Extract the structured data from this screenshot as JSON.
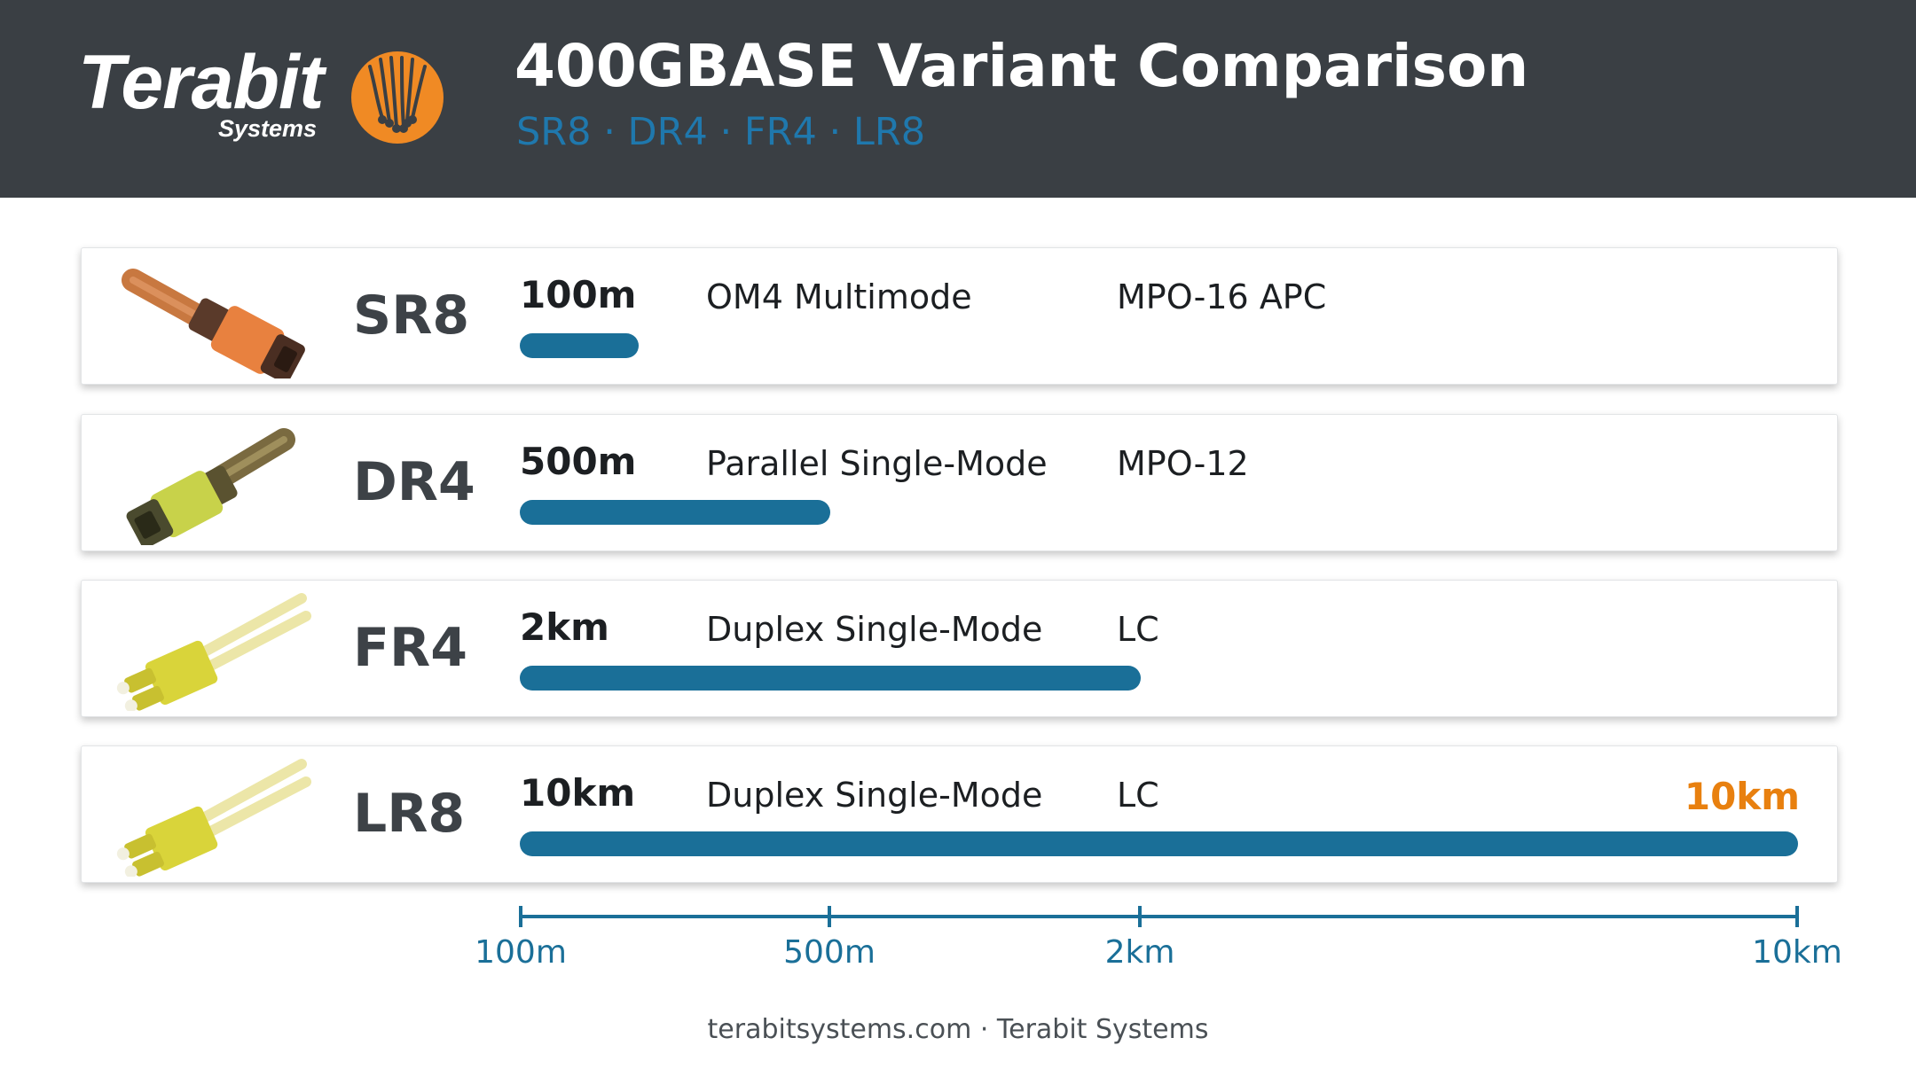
{
  "header": {
    "logo_word": "Terabit",
    "logo_sub": "Systems",
    "title": "400GBASE Variant Comparison",
    "subtitle": "SR8 · DR4 · FR4 · LR8"
  },
  "rows": [
    {
      "variant": "SR8",
      "reach": "100m",
      "fiber": "OM4 Multimode",
      "connector": "MPO-16 APC",
      "connector_icon": "mpo-connector-icon",
      "connector_color": "#e8813f"
    },
    {
      "variant": "DR4",
      "reach": "500m",
      "fiber": "Parallel Single-Mode",
      "connector": "MPO-12",
      "connector_icon": "mpo-connector-icon",
      "connector_color": "#c8d24a"
    },
    {
      "variant": "FR4",
      "reach": "2km",
      "fiber": "Duplex Single-Mode",
      "connector": "LC",
      "connector_icon": "lc-duplex-connector-icon",
      "connector_color": "#d9d43a"
    },
    {
      "variant": "LR8",
      "reach": "10km",
      "fiber": "Duplex Single-Mode",
      "connector": "LC",
      "connector_icon": "lc-duplex-connector-icon",
      "connector_color": "#d9d43a",
      "highlight": "10km"
    }
  ],
  "chart_data": {
    "type": "bar",
    "orientation": "horizontal",
    "title": "400GBASE Variant Comparison",
    "subtitle": "SR8 · DR4 · FR4 · LR8",
    "categories": [
      "SR8",
      "DR4",
      "FR4",
      "LR8"
    ],
    "values_m": [
      100,
      500,
      2000,
      10000
    ],
    "value_labels": [
      "100m",
      "500m",
      "2km",
      "10km"
    ],
    "x_scale": "categorical reach ticks",
    "ticks": [
      {
        "label": "100m",
        "value_m": 100
      },
      {
        "label": "500m",
        "value_m": 500
      },
      {
        "label": "2km",
        "value_m": 2000
      },
      {
        "label": "10km",
        "value_m": 10000
      }
    ],
    "bar_color": "#1a6f98",
    "highlight_color": "#e8800f"
  },
  "colors": {
    "header_bg": "#3a3f44",
    "accent_blue": "#1f78ad",
    "bar": "#1a6f98",
    "logo_orange": "#f08a24"
  },
  "footer": "terabitsystems.com · Terabit Systems"
}
